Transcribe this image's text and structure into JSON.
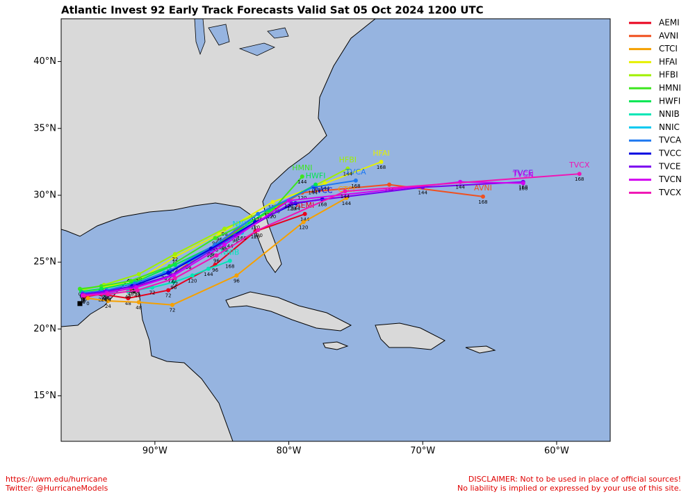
{
  "map": {
    "title": "Atlantic Invest 92 Early Track Forecasts Valid Sat 05 Oct 2024 1200 UTC",
    "lonlim": [
      -97,
      -56
    ],
    "latlim": [
      11.6,
      43.2
    ],
    "lonticks": [
      {
        "value": -90,
        "label": "90°W"
      },
      {
        "value": -80,
        "label": "80°W"
      },
      {
        "value": -70,
        "label": "70°W"
      },
      {
        "value": -60,
        "label": "60°W"
      }
    ],
    "latticks": [
      {
        "value": 40,
        "label": "40°N"
      },
      {
        "value": 35,
        "label": "35°N"
      },
      {
        "value": 30,
        "label": "30°N"
      },
      {
        "value": 25,
        "label": "25°N"
      },
      {
        "value": 20,
        "label": "20°N"
      },
      {
        "value": 15,
        "label": "15°N"
      }
    ],
    "initial_position": {
      "lon": -95.6,
      "lat": 21.9
    },
    "tracks": [
      {
        "name": "AEMI",
        "color": "#e8001c",
        "points": [
          {
            "lon": -95.3,
            "lat": 22.4,
            "tau": 0
          },
          {
            "lon": -94,
            "lat": 22.6,
            "tau": 24
          },
          {
            "lon": -92,
            "lat": 22.3,
            "tau": 48
          },
          {
            "lon": -89,
            "lat": 22.9,
            "tau": 72
          },
          {
            "lon": -85.5,
            "lat": 24.8,
            "tau": 96
          },
          {
            "lon": -82.5,
            "lat": 27.3,
            "tau": 120
          },
          {
            "lon": -78.8,
            "lat": 28.6,
            "tau": 144
          }
        ]
      },
      {
        "name": "AVNI",
        "color": "#f0501e",
        "points": [
          {
            "lon": -95.2,
            "lat": 22.6,
            "tau": 0
          },
          {
            "lon": -93.8,
            "lat": 22.7,
            "tau": 24
          },
          {
            "lon": -91.8,
            "lat": 23,
            "tau": 48
          },
          {
            "lon": -88.8,
            "lat": 24,
            "tau": 72
          },
          {
            "lon": -84,
            "lat": 27.3,
            "tau": 96
          },
          {
            "lon": -79,
            "lat": 30.2,
            "tau": 120
          },
          {
            "lon": -72.5,
            "lat": 30.8,
            "tau": 144
          },
          {
            "lon": -65.5,
            "lat": 29.9,
            "tau": 168
          }
        ]
      },
      {
        "name": "CTCI",
        "color": "#f5a000",
        "points": [
          {
            "lon": -95,
            "lat": 22.3,
            "tau": 0
          },
          {
            "lon": -93.5,
            "lat": 22.1,
            "tau": 24
          },
          {
            "lon": -91.2,
            "lat": 22,
            "tau": 48
          },
          {
            "lon": -88.7,
            "lat": 21.8,
            "tau": 72
          },
          {
            "lon": -83.9,
            "lat": 24,
            "tau": 96
          },
          {
            "lon": -78.9,
            "lat": 28,
            "tau": 120
          },
          {
            "lon": -75.7,
            "lat": 29.8,
            "tau": 144
          }
        ]
      },
      {
        "name": "HFAI",
        "color": "#e6f000",
        "points": [
          {
            "lon": -95.4,
            "lat": 22.6,
            "tau": 0
          },
          {
            "lon": -93.8,
            "lat": 23.1,
            "tau": 24
          },
          {
            "lon": -91,
            "lat": 23.8,
            "tau": 48
          },
          {
            "lon": -88.5,
            "lat": 25.4,
            "tau": 72
          },
          {
            "lon": -85.2,
            "lat": 27.1,
            "tau": 96
          },
          {
            "lon": -81.2,
            "lat": 29.5,
            "tau": 120
          },
          {
            "lon": -77.3,
            "lat": 30.9,
            "tau": 144
          },
          {
            "lon": -73.1,
            "lat": 32.5,
            "tau": 168
          }
        ]
      },
      {
        "name": "HFBI",
        "color": "#a0f000",
        "points": [
          {
            "lon": -95.5,
            "lat": 22.9,
            "tau": 0
          },
          {
            "lon": -93.8,
            "lat": 23.3,
            "tau": 24
          },
          {
            "lon": -91.2,
            "lat": 24.1,
            "tau": 48
          },
          {
            "lon": -88.5,
            "lat": 25.6,
            "tau": 72
          },
          {
            "lon": -84.8,
            "lat": 27.5,
            "tau": 96
          },
          {
            "lon": -81,
            "lat": 29.2,
            "tau": 120
          },
          {
            "lon": -75.6,
            "lat": 32,
            "tau": 144
          }
        ]
      },
      {
        "name": "HMNI",
        "color": "#3ce61e",
        "points": [
          {
            "lon": -95.6,
            "lat": 23,
            "tau": 0
          },
          {
            "lon": -94,
            "lat": 23.2,
            "tau": 24
          },
          {
            "lon": -91.8,
            "lat": 23.6,
            "tau": 48
          },
          {
            "lon": -88.9,
            "lat": 24.7,
            "tau": 72
          },
          {
            "lon": -85.5,
            "lat": 26.8,
            "tau": 96
          },
          {
            "lon": -81.3,
            "lat": 28.8,
            "tau": 120
          },
          {
            "lon": -79,
            "lat": 31.4,
            "tau": 144
          }
        ]
      },
      {
        "name": "HWFI",
        "color": "#00e650",
        "points": [
          {
            "lon": -95.5,
            "lat": 22.8,
            "tau": 0
          },
          {
            "lon": -94,
            "lat": 23,
            "tau": 24
          },
          {
            "lon": -91.5,
            "lat": 23.5,
            "tau": 48
          },
          {
            "lon": -88.5,
            "lat": 24.8,
            "tau": 72
          },
          {
            "lon": -85,
            "lat": 26.5,
            "tau": 96
          },
          {
            "lon": -81.5,
            "lat": 28.9,
            "tau": 120
          },
          {
            "lon": -78,
            "lat": 30.8,
            "tau": 144
          }
        ]
      },
      {
        "name": "NNIB",
        "color": "#00e6b4",
        "points": [
          {
            "lon": -95.3,
            "lat": 22.5,
            "tau": 0
          },
          {
            "lon": -93.8,
            "lat": 22.6,
            "tau": 24
          },
          {
            "lon": -92,
            "lat": 22.8,
            "tau": 48
          },
          {
            "lon": -90.2,
            "lat": 23.1,
            "tau": 72
          },
          {
            "lon": -88.6,
            "lat": 23.5,
            "tau": 96
          },
          {
            "lon": -87.2,
            "lat": 24,
            "tau": 120
          },
          {
            "lon": -86,
            "lat": 24.5,
            "tau": 144
          },
          {
            "lon": -84.4,
            "lat": 25.1,
            "tau": 168
          }
        ]
      },
      {
        "name": "NNIC",
        "color": "#00c8f0",
        "points": [
          {
            "lon": -95.3,
            "lat": 22.6,
            "tau": 0
          },
          {
            "lon": -93.6,
            "lat": 22.9,
            "tau": 24
          },
          {
            "lon": -91.5,
            "lat": 23.4,
            "tau": 48
          },
          {
            "lon": -89.3,
            "lat": 24.2,
            "tau": 72
          },
          {
            "lon": -87.5,
            "lat": 25,
            "tau": 96
          },
          {
            "lon": -85.8,
            "lat": 25.9,
            "tau": 120
          },
          {
            "lon": -84.5,
            "lat": 26.6,
            "tau": 144
          },
          {
            "lon": -83.5,
            "lat": 27.2,
            "tau": 168
          }
        ]
      },
      {
        "name": "TVCA",
        "color": "#1e78f0",
        "points": [
          {
            "lon": -95.4,
            "lat": 22.7,
            "tau": 0
          },
          {
            "lon": -93.6,
            "lat": 22.9,
            "tau": 24
          },
          {
            "lon": -91.5,
            "lat": 23.4,
            "tau": 48
          },
          {
            "lon": -88.8,
            "lat": 24.4,
            "tau": 72
          },
          {
            "lon": -85.5,
            "lat": 26.3,
            "tau": 96
          },
          {
            "lon": -82.3,
            "lat": 28.6,
            "tau": 120
          },
          {
            "lon": -78.2,
            "lat": 30.6,
            "tau": 144
          },
          {
            "lon": -75,
            "lat": 31.1,
            "tau": 168
          }
        ]
      },
      {
        "name": "TVCC",
        "color": "#0000e0",
        "points": [
          {
            "lon": -95.4,
            "lat": 22.6,
            "tau": 0
          },
          {
            "lon": -93.7,
            "lat": 22.8,
            "tau": 24
          },
          {
            "lon": -91.7,
            "lat": 23.2,
            "tau": 48
          },
          {
            "lon": -89,
            "lat": 24.2,
            "tau": 72
          },
          {
            "lon": -85.8,
            "lat": 26,
            "tau": 96
          },
          {
            "lon": -82.5,
            "lat": 28,
            "tau": 120
          },
          {
            "lon": -79.5,
            "lat": 29.4,
            "tau": 144
          },
          {
            "lon": -77.5,
            "lat": 29.7,
            "tau": 168
          }
        ]
      },
      {
        "name": "TVCE",
        "color": "#7800f0",
        "points": [
          {
            "lon": -95.4,
            "lat": 22.6,
            "tau": 0
          },
          {
            "lon": -93.7,
            "lat": 22.8,
            "tau": 24
          },
          {
            "lon": -91.5,
            "lat": 23.2,
            "tau": 48
          },
          {
            "lon": -88.8,
            "lat": 24,
            "tau": 72
          },
          {
            "lon": -84,
            "lat": 27,
            "tau": 96
          },
          {
            "lon": -79.8,
            "lat": 29.4,
            "tau": 120
          },
          {
            "lon": -70,
            "lat": 30.6,
            "tau": 144
          },
          {
            "lon": -62.5,
            "lat": 31,
            "tau": 168
          }
        ]
      },
      {
        "name": "TVCN",
        "color": "#d200f0",
        "points": [
          {
            "lon": -95.4,
            "lat": 22.5,
            "tau": 0
          },
          {
            "lon": -93.6,
            "lat": 22.7,
            "tau": 24
          },
          {
            "lon": -91.4,
            "lat": 23.1,
            "tau": 48
          },
          {
            "lon": -88.6,
            "lat": 24,
            "tau": 72
          },
          {
            "lon": -84.8,
            "lat": 26.3,
            "tau": 96
          },
          {
            "lon": -80,
            "lat": 29.6,
            "tau": 120
          },
          {
            "lon": -67.2,
            "lat": 31,
            "tau": 144
          },
          {
            "lon": -62.5,
            "lat": 30.9,
            "tau": 168
          }
        ]
      },
      {
        "name": "TVCX",
        "color": "#f014b4",
        "points": [
          {
            "lon": -95.3,
            "lat": 22.5,
            "tau": 0
          },
          {
            "lon": -93.5,
            "lat": 22.6,
            "tau": 24
          },
          {
            "lon": -91.3,
            "lat": 22.9,
            "tau": 48
          },
          {
            "lon": -88.5,
            "lat": 23.8,
            "tau": 72
          },
          {
            "lon": -85.4,
            "lat": 25.5,
            "tau": 96
          },
          {
            "lon": -82.3,
            "lat": 27.4,
            "tau": 120
          },
          {
            "lon": -75.8,
            "lat": 30.3,
            "tau": 144
          },
          {
            "lon": -58.3,
            "lat": 31.6,
            "tau": 168
          }
        ]
      }
    ],
    "footer_left": [
      "https://uwm.edu/hurricane",
      "Twitter: @HurricaneModels"
    ],
    "footer_right": [
      "DISCLAIMER: Not to be used in place of official sources!",
      "No liability is implied or expressed by your use of this site."
    ]
  }
}
